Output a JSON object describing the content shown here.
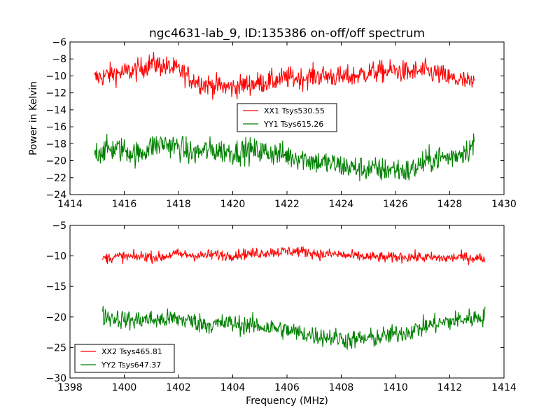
{
  "chart_data": [
    {
      "type": "line",
      "title": "ngc4631-lab_9, ID:135386 on-off/off spectrum",
      "xlabel": "",
      "ylabel": "Power in Kelvin",
      "xlim": [
        1414,
        1430
      ],
      "ylim": [
        -24,
        -6
      ],
      "xticks": [
        "1414",
        "1416",
        "1418",
        "1420",
        "1422",
        "1424",
        "1426",
        "1428",
        "1430"
      ],
      "yticks": [
        "-24",
        "-22",
        "-20",
        "-18",
        "-16",
        "-14",
        "-12",
        "-10",
        "-8",
        "-6"
      ],
      "legend_position": "center",
      "x": [
        1414.9,
        1415.5,
        1416.0,
        1416.5,
        1417.0,
        1417.5,
        1418.0,
        1418.5,
        1419.0,
        1419.5,
        1420.0,
        1420.5,
        1421.0,
        1421.5,
        1422.0,
        1422.5,
        1423.0,
        1423.5,
        1424.0,
        1424.5,
        1425.0,
        1425.5,
        1426.0,
        1426.5,
        1427.0,
        1427.5,
        1428.0,
        1428.5,
        1428.9
      ],
      "series": [
        {
          "name": "XX1 Tsys530.55",
          "color": "#ff0000",
          "values": [
            -10.3,
            -9.8,
            -9.6,
            -9.3,
            -8.5,
            -8.9,
            -9.3,
            -10.4,
            -11.0,
            -11.2,
            -11.4,
            -11.0,
            -10.8,
            -10.6,
            -10.2,
            -10.3,
            -10.0,
            -10.0,
            -10.2,
            -10.0,
            -9.6,
            -9.5,
            -9.4,
            -9.6,
            -9.4,
            -9.7,
            -10.3,
            -10.6,
            -11.0
          ]
        },
        {
          "name": "YY1 Tsys615.26",
          "color": "#008000",
          "values": [
            -19.0,
            -18.6,
            -18.7,
            -19.3,
            -18.3,
            -18.0,
            -18.4,
            -19.2,
            -18.8,
            -18.8,
            -19.0,
            -18.8,
            -18.9,
            -19.1,
            -19.4,
            -19.6,
            -20.1,
            -20.3,
            -20.6,
            -20.9,
            -21.0,
            -21.1,
            -21.0,
            -21.3,
            -20.3,
            -19.7,
            -19.6,
            -18.9,
            -18.2
          ]
        }
      ]
    },
    {
      "type": "line",
      "title": "",
      "xlabel": "Frequency (MHz)",
      "ylabel": "",
      "xlim": [
        1398,
        1414
      ],
      "ylim": [
        -30,
        -5
      ],
      "xticks": [
        "1398",
        "1400",
        "1402",
        "1404",
        "1406",
        "1408",
        "1410",
        "1412",
        "1414"
      ],
      "yticks": [
        "-30",
        "-25",
        "-20",
        "-15",
        "-10",
        "-5"
      ],
      "legend_position": "lower-left",
      "x": [
        1399.2,
        1399.8,
        1400.3,
        1400.8,
        1401.3,
        1401.8,
        1402.3,
        1402.8,
        1403.3,
        1403.8,
        1404.3,
        1404.8,
        1405.3,
        1405.8,
        1406.3,
        1406.8,
        1407.3,
        1407.8,
        1408.3,
        1408.8,
        1409.3,
        1409.8,
        1410.3,
        1410.8,
        1411.3,
        1411.8,
        1412.3,
        1412.8,
        1413.3
      ],
      "series": [
        {
          "name": "XX2 Tsys465.81",
          "color": "#ff0000",
          "values": [
            -10.4,
            -10.1,
            -10.2,
            -10.0,
            -10.3,
            -9.7,
            -9.8,
            -10.0,
            -9.8,
            -9.9,
            -9.7,
            -9.6,
            -9.4,
            -9.3,
            -9.2,
            -9.4,
            -9.8,
            -9.7,
            -10.0,
            -10.1,
            -10.2,
            -10.3,
            -10.1,
            -10.2,
            -10.3,
            -10.4,
            -10.2,
            -10.3,
            -10.4
          ]
        },
        {
          "name": "YY2 Tsys647.37",
          "color": "#008000",
          "values": [
            -19.8,
            -20.3,
            -20.6,
            -20.4,
            -20.5,
            -20.3,
            -20.5,
            -21.0,
            -21.3,
            -21.0,
            -21.3,
            -21.4,
            -21.7,
            -22.0,
            -22.5,
            -22.9,
            -23.2,
            -23.4,
            -23.8,
            -23.6,
            -23.4,
            -23.0,
            -22.5,
            -22.0,
            -21.3,
            -20.9,
            -20.5,
            -20.2,
            -19.9
          ]
        }
      ]
    }
  ]
}
